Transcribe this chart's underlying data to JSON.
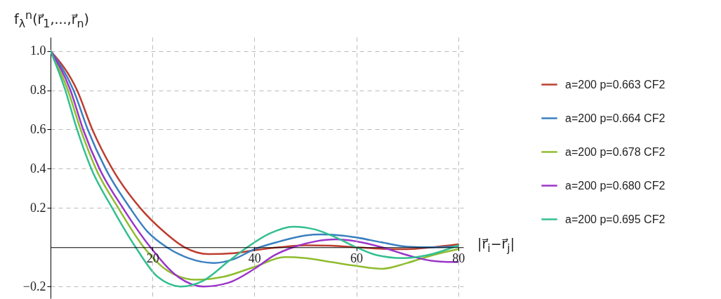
{
  "chart_data": {
    "type": "line",
    "xlabel": "|r⃗$_{i}$−r⃗$_{j}$|",
    "ylabel": "f$_{λ}$$^{n}$(r⃗$_{1}$,...,r⃗$_{n}$)",
    "xlim": [
      0,
      81
    ],
    "ylim": [
      -0.26,
      1.07
    ],
    "xticks": [
      20,
      40,
      60,
      80
    ],
    "yticks": [
      {
        "value": -0.2,
        "label": "−0.2"
      },
      {
        "value": 0.2,
        "label": "0.2"
      },
      {
        "value": 0.4,
        "label": "0.4"
      },
      {
        "value": 0.6,
        "label": "0.6"
      },
      {
        "value": 0.8,
        "label": "0.8"
      },
      {
        "value": 1,
        "label": "1.0"
      }
    ],
    "grid": true,
    "legend": "right",
    "line_style": "solid",
    "marker": "none",
    "series": [
      {
        "name": "a=200 p=0.663 CF2",
        "color": "#bd3e2f",
        "x": [
          0,
          5.2,
          8.2,
          12.1,
          17.6,
          22,
          26.3,
          31,
          36,
          40,
          45,
          50,
          55,
          60,
          65,
          70,
          75,
          80
        ],
        "values": [
          1,
          0.8,
          0.6,
          0.4,
          0.2,
          0.085,
          0,
          -0.035,
          -0.03,
          -0.015,
          0,
          0.01,
          0.008,
          0,
          -0.008,
          -0.01,
          0,
          0.015
        ]
      },
      {
        "name": "a=200 p=0.664 CF2",
        "color": "#3a7fc0",
        "x": [
          0,
          4.5,
          7.3,
          10.8,
          15.6,
          19,
          22.8,
          27,
          32,
          36,
          40,
          45,
          50,
          53,
          57,
          60,
          65,
          70,
          75,
          80
        ],
        "values": [
          1,
          0.8,
          0.6,
          0.4,
          0.2,
          0.08,
          0,
          -0.055,
          -0.08,
          -0.06,
          -0.01,
          0.03,
          0.06,
          0.065,
          0.06,
          0.05,
          0.025,
          0.003,
          0,
          0.005
        ]
      },
      {
        "name": "a=200 p=0.678 CF2",
        "color": "#8fbc2f",
        "x": [
          0,
          3.4,
          5.9,
          8.9,
          13.3,
          18.3,
          23,
          28.5,
          34,
          40,
          46,
          50,
          55,
          60,
          65,
          70,
          75,
          80
        ],
        "values": [
          1,
          0.8,
          0.6,
          0.4,
          0.2,
          0,
          -0.12,
          -0.165,
          -0.15,
          -0.1,
          -0.05,
          -0.055,
          -0.075,
          -0.095,
          -0.11,
          -0.08,
          -0.04,
          -0.01
        ]
      },
      {
        "name": "a=200 p=0.680 CF2",
        "color": "#9b35c8",
        "x": [
          0,
          3.9,
          6.4,
          9.6,
          14.2,
          19.6,
          25,
          30,
          35,
          40,
          44,
          47.6,
          52,
          56,
          60,
          65,
          70,
          75,
          78,
          80
        ],
        "values": [
          1,
          0.8,
          0.6,
          0.4,
          0.2,
          0,
          -0.15,
          -0.2,
          -0.18,
          -0.11,
          -0.04,
          0,
          0.03,
          0.04,
          0.03,
          0,
          -0.04,
          -0.07,
          -0.075,
          -0.075
        ]
      },
      {
        "name": "a=200 p=0.695 CF2",
        "color": "#33bf90",
        "x": [
          0,
          2.9,
          5.2,
          8,
          12.1,
          16.7,
          21,
          25.7,
          30,
          35,
          38.6,
          43,
          47.6,
          52,
          56,
          60,
          64,
          69,
          74,
          80
        ],
        "values": [
          1,
          0.8,
          0.6,
          0.4,
          0.2,
          0,
          -0.15,
          -0.2,
          -0.17,
          -0.07,
          0,
          0.07,
          0.105,
          0.09,
          0.05,
          0,
          -0.04,
          -0.055,
          -0.04,
          0.01
        ]
      }
    ]
  }
}
